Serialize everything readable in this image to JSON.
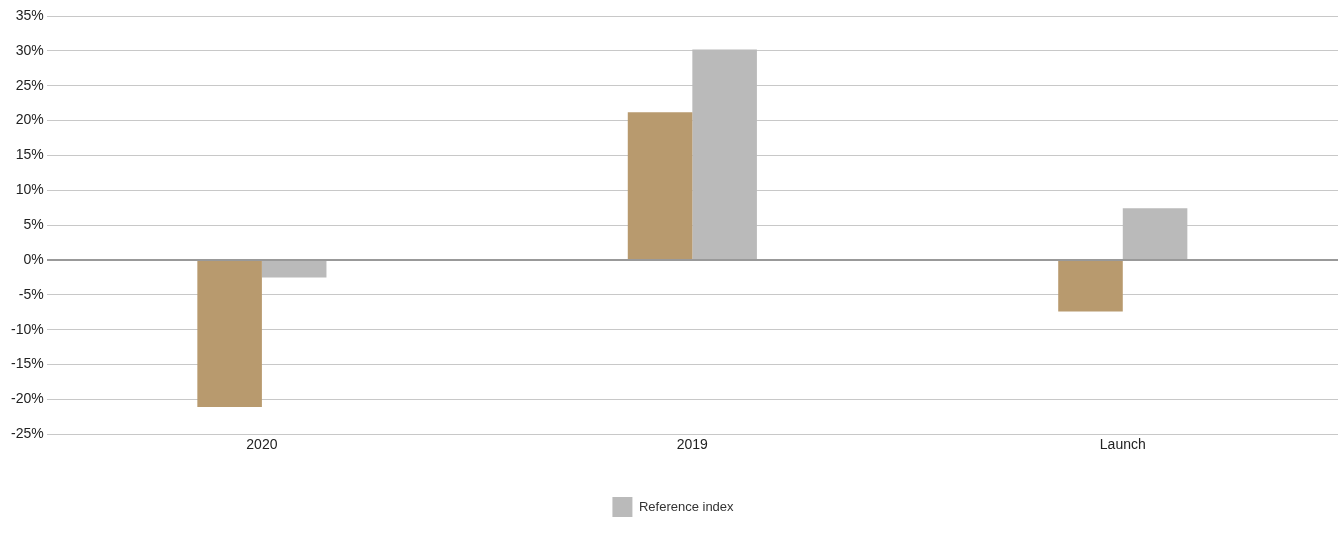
{
  "chart_data": {
    "type": "bar",
    "categories": [
      "2020",
      "2019",
      "Launch"
    ],
    "series": [
      {
        "color": "#b89a6e",
        "values": [
          -21.1,
          21.2,
          -7.4
        ]
      },
      {
        "name": "Reference index",
        "color": "#bababa",
        "values": [
          -2.5,
          30.2,
          7.4
        ]
      }
    ],
    "ylim": [
      -25,
      35
    ],
    "yticks": [
      {
        "value": -25,
        "label": "-25%"
      },
      {
        "value": -20,
        "label": "-20%"
      },
      {
        "value": -15,
        "label": "-15%"
      },
      {
        "value": -10,
        "label": "-10%"
      },
      {
        "value": -5,
        "label": "-5%"
      },
      {
        "value": 0,
        "label": "0%"
      },
      {
        "value": 5,
        "label": "5%"
      },
      {
        "value": 10,
        "label": "10%"
      },
      {
        "value": 15,
        "label": "15%"
      },
      {
        "value": 20,
        "label": "20%"
      },
      {
        "value": 25,
        "label": "25%"
      },
      {
        "value": 30,
        "label": "30%"
      },
      {
        "value": 35,
        "label": "35%"
      }
    ],
    "grid": "y",
    "legend": "bottom"
  }
}
